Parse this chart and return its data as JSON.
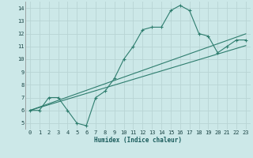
{
  "x": [
    0,
    1,
    2,
    3,
    4,
    5,
    6,
    7,
    8,
    9,
    10,
    11,
    12,
    13,
    14,
    15,
    16,
    17,
    18,
    19,
    20,
    21,
    22,
    23
  ],
  "y_main": [
    6,
    6,
    7,
    7,
    6,
    5,
    4.8,
    7,
    7.5,
    8.5,
    10,
    11,
    12.3,
    12.5,
    12.5,
    13.8,
    14.2,
    13.8,
    12,
    11.8,
    10.5,
    11,
    11.5,
    11.5
  ],
  "y_line1": [
    6.0,
    6.22,
    6.44,
    6.66,
    6.88,
    7.1,
    7.32,
    7.54,
    7.76,
    7.98,
    8.2,
    8.42,
    8.64,
    8.86,
    9.08,
    9.3,
    9.52,
    9.74,
    9.96,
    10.18,
    10.4,
    10.62,
    10.84,
    11.06
  ],
  "y_line2": [
    6.0,
    6.26,
    6.52,
    6.78,
    7.04,
    7.3,
    7.56,
    7.82,
    8.08,
    8.34,
    8.6,
    8.86,
    9.12,
    9.38,
    9.64,
    9.9,
    10.16,
    10.42,
    10.68,
    10.94,
    11.2,
    11.46,
    11.72,
    11.98
  ],
  "color": "#2e7d6e",
  "bg_color": "#cce8e8",
  "grid_color": "#b8d4d4",
  "xlabel": "Humidex (Indice chaleur)",
  "xlim": [
    -0.5,
    23.5
  ],
  "ylim": [
    4.5,
    14.5
  ],
  "yticks": [
    5,
    6,
    7,
    8,
    9,
    10,
    11,
    12,
    13,
    14
  ],
  "xticks": [
    0,
    1,
    2,
    3,
    4,
    5,
    6,
    7,
    8,
    9,
    10,
    11,
    12,
    13,
    14,
    15,
    16,
    17,
    18,
    19,
    20,
    21,
    22,
    23
  ],
  "xlabel_fontsize": 5.5,
  "tick_fontsize": 5.0,
  "linewidth": 0.8,
  "marker_size": 3.0
}
